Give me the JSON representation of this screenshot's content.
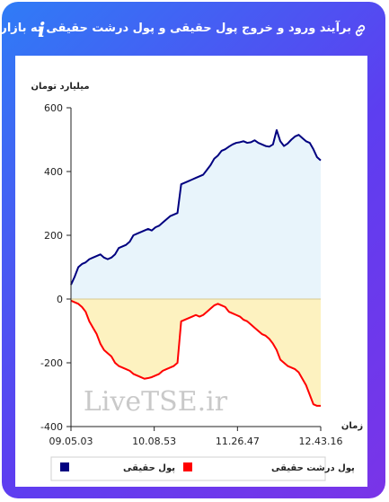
{
  "header": {
    "title": "برآیند ورود و خروج پول حقیقی و پول درشت حقیقی به بازار",
    "info_symbol": "i",
    "link_icon": "link-icon"
  },
  "colors": {
    "real_money": "#000080",
    "large_real_money": "#ff0000",
    "real_money_fill": "#e8f4fb",
    "large_real_money_fill": "#fdf2c0"
  },
  "chart_data": {
    "type": "area",
    "ylabel": "میلیارد تومان",
    "xlabel": "زمان",
    "ylim": [
      -400,
      600
    ],
    "yticks": [
      -400,
      -200,
      0,
      200,
      400,
      600
    ],
    "xticks": [
      "09.05.03",
      "10.08.53",
      "11.26.47",
      "12.43.16"
    ],
    "grid": false,
    "legend_position": "bottom",
    "watermark": "LiveTSE.ir",
    "series": [
      {
        "name": "پول حقیقی",
        "color": "#000080",
        "x": [
          0,
          1,
          2,
          3,
          4,
          5,
          6,
          7,
          8,
          9,
          10,
          11,
          12,
          13,
          14,
          15,
          16,
          17,
          18,
          19,
          20,
          21,
          22,
          23,
          24,
          25,
          26,
          27,
          28,
          29,
          30,
          31,
          32,
          33,
          34,
          35,
          36,
          37,
          38,
          39,
          40,
          41,
          42,
          43,
          44,
          45,
          46,
          47,
          48,
          49,
          50,
          51,
          52,
          53,
          54,
          55,
          56,
          57,
          58,
          59,
          60,
          61,
          62,
          63,
          64,
          65,
          66,
          67,
          68
        ],
        "values": [
          45,
          70,
          100,
          110,
          115,
          125,
          130,
          135,
          140,
          130,
          125,
          130,
          140,
          160,
          165,
          170,
          180,
          200,
          205,
          210,
          215,
          220,
          215,
          225,
          230,
          240,
          250,
          260,
          265,
          270,
          360,
          365,
          370,
          375,
          380,
          385,
          390,
          405,
          420,
          440,
          450,
          465,
          470,
          478,
          485,
          490,
          492,
          495,
          490,
          492,
          498,
          490,
          485,
          480,
          478,
          485,
          530,
          495,
          480,
          488,
          500,
          510,
          515,
          505,
          495,
          490,
          470,
          445,
          435
        ]
      },
      {
        "name": "پول درشت حقیقی",
        "color": "#ff0000",
        "x": [
          0,
          1,
          2,
          3,
          4,
          5,
          6,
          7,
          8,
          9,
          10,
          11,
          12,
          13,
          14,
          15,
          16,
          17,
          18,
          19,
          20,
          21,
          22,
          23,
          24,
          25,
          26,
          27,
          28,
          29,
          30,
          31,
          32,
          33,
          34,
          35,
          36,
          37,
          38,
          39,
          40,
          41,
          42,
          43,
          44,
          45,
          46,
          47,
          48,
          49,
          50,
          51,
          52,
          53,
          54,
          55,
          56,
          57,
          58,
          59,
          60,
          61,
          62,
          63,
          64,
          65,
          66,
          67,
          68
        ],
        "values": [
          -5,
          -10,
          -15,
          -25,
          -40,
          -70,
          -90,
          -110,
          -140,
          -160,
          -170,
          -180,
          -200,
          -210,
          -215,
          -220,
          -225,
          -235,
          -240,
          -245,
          -250,
          -248,
          -245,
          -240,
          -235,
          -225,
          -220,
          -215,
          -210,
          -200,
          -70,
          -65,
          -60,
          -55,
          -50,
          -55,
          -50,
          -40,
          -30,
          -20,
          -15,
          -20,
          -25,
          -40,
          -45,
          -50,
          -55,
          -65,
          -70,
          -80,
          -90,
          -100,
          -110,
          -115,
          -125,
          -140,
          -160,
          -190,
          -200,
          -210,
          -215,
          -220,
          -230,
          -250,
          -270,
          -300,
          -330,
          -335,
          -335
        ]
      }
    ]
  }
}
